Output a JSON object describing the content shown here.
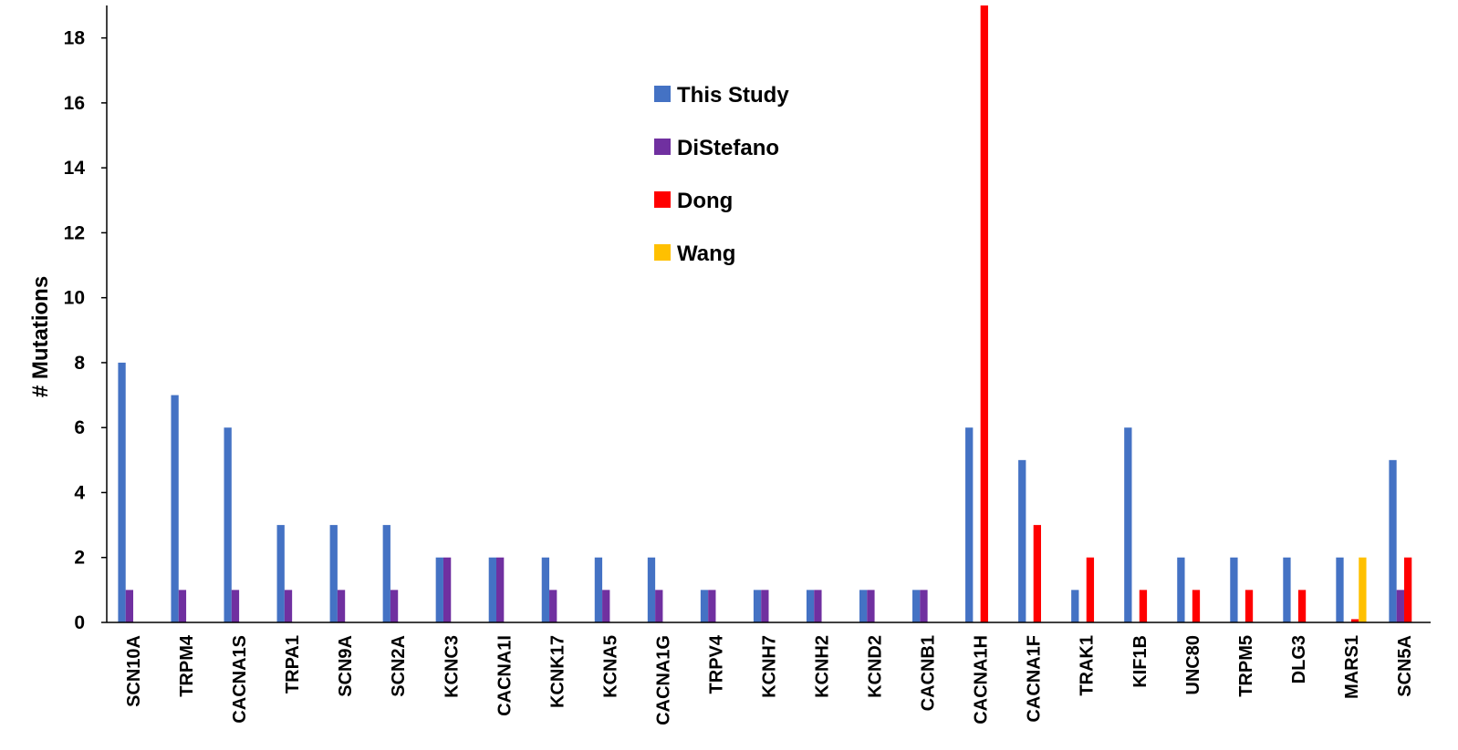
{
  "chart_data": {
    "type": "bar",
    "title": "",
    "xlabel": "",
    "ylabel": "# Mutations",
    "ylim": [
      0,
      19
    ],
    "yticks": [
      0,
      2,
      4,
      6,
      8,
      10,
      12,
      14,
      16,
      18
    ],
    "grid": false,
    "legend_position": "top-center",
    "categories": [
      "SCN10A",
      "TRPM4",
      "CACNA1S",
      "TRPA1",
      "SCN9A",
      "SCN2A",
      "KCNC3",
      "CACNA1I",
      "KCNK17",
      "KCNA5",
      "CACNA1G",
      "TRPV4",
      "KCNH7",
      "KCNH2",
      "KCND2",
      "CACNB1",
      "CACNA1H",
      "CACNA1F",
      "TRAK1",
      "KIF1B",
      "UNC80",
      "TRPM5",
      "DLG3",
      "MARS1",
      "SCN5A"
    ],
    "series": [
      {
        "name": "This Study",
        "color": "#4472C4",
        "values": [
          8,
          7,
          6,
          3,
          3,
          3,
          2,
          2,
          2,
          2,
          2,
          1,
          1,
          1,
          1,
          1,
          6,
          5,
          1,
          6,
          2,
          2,
          2,
          2,
          5
        ]
      },
      {
        "name": "DiStefano",
        "color": "#7030A0",
        "values": [
          1,
          1,
          1,
          1,
          1,
          1,
          2,
          2,
          1,
          1,
          1,
          1,
          1,
          1,
          1,
          1,
          0,
          0,
          0,
          0,
          0,
          0,
          0,
          0,
          1
        ]
      },
      {
        "name": "Dong",
        "color": "#FF0000",
        "values": [
          0,
          0,
          0,
          0,
          0,
          0,
          0,
          0,
          0,
          0,
          0,
          0,
          0,
          0,
          0,
          0,
          19,
          3,
          2,
          1,
          1,
          1,
          1,
          0.1,
          2
        ]
      },
      {
        "name": "Wang",
        "color": "#FFC000",
        "values": [
          0,
          0,
          0,
          0,
          0,
          0,
          0,
          0,
          0,
          0,
          0,
          0,
          0,
          0,
          0,
          0,
          0,
          0,
          0,
          0,
          0,
          0,
          0,
          2,
          0
        ]
      }
    ]
  }
}
